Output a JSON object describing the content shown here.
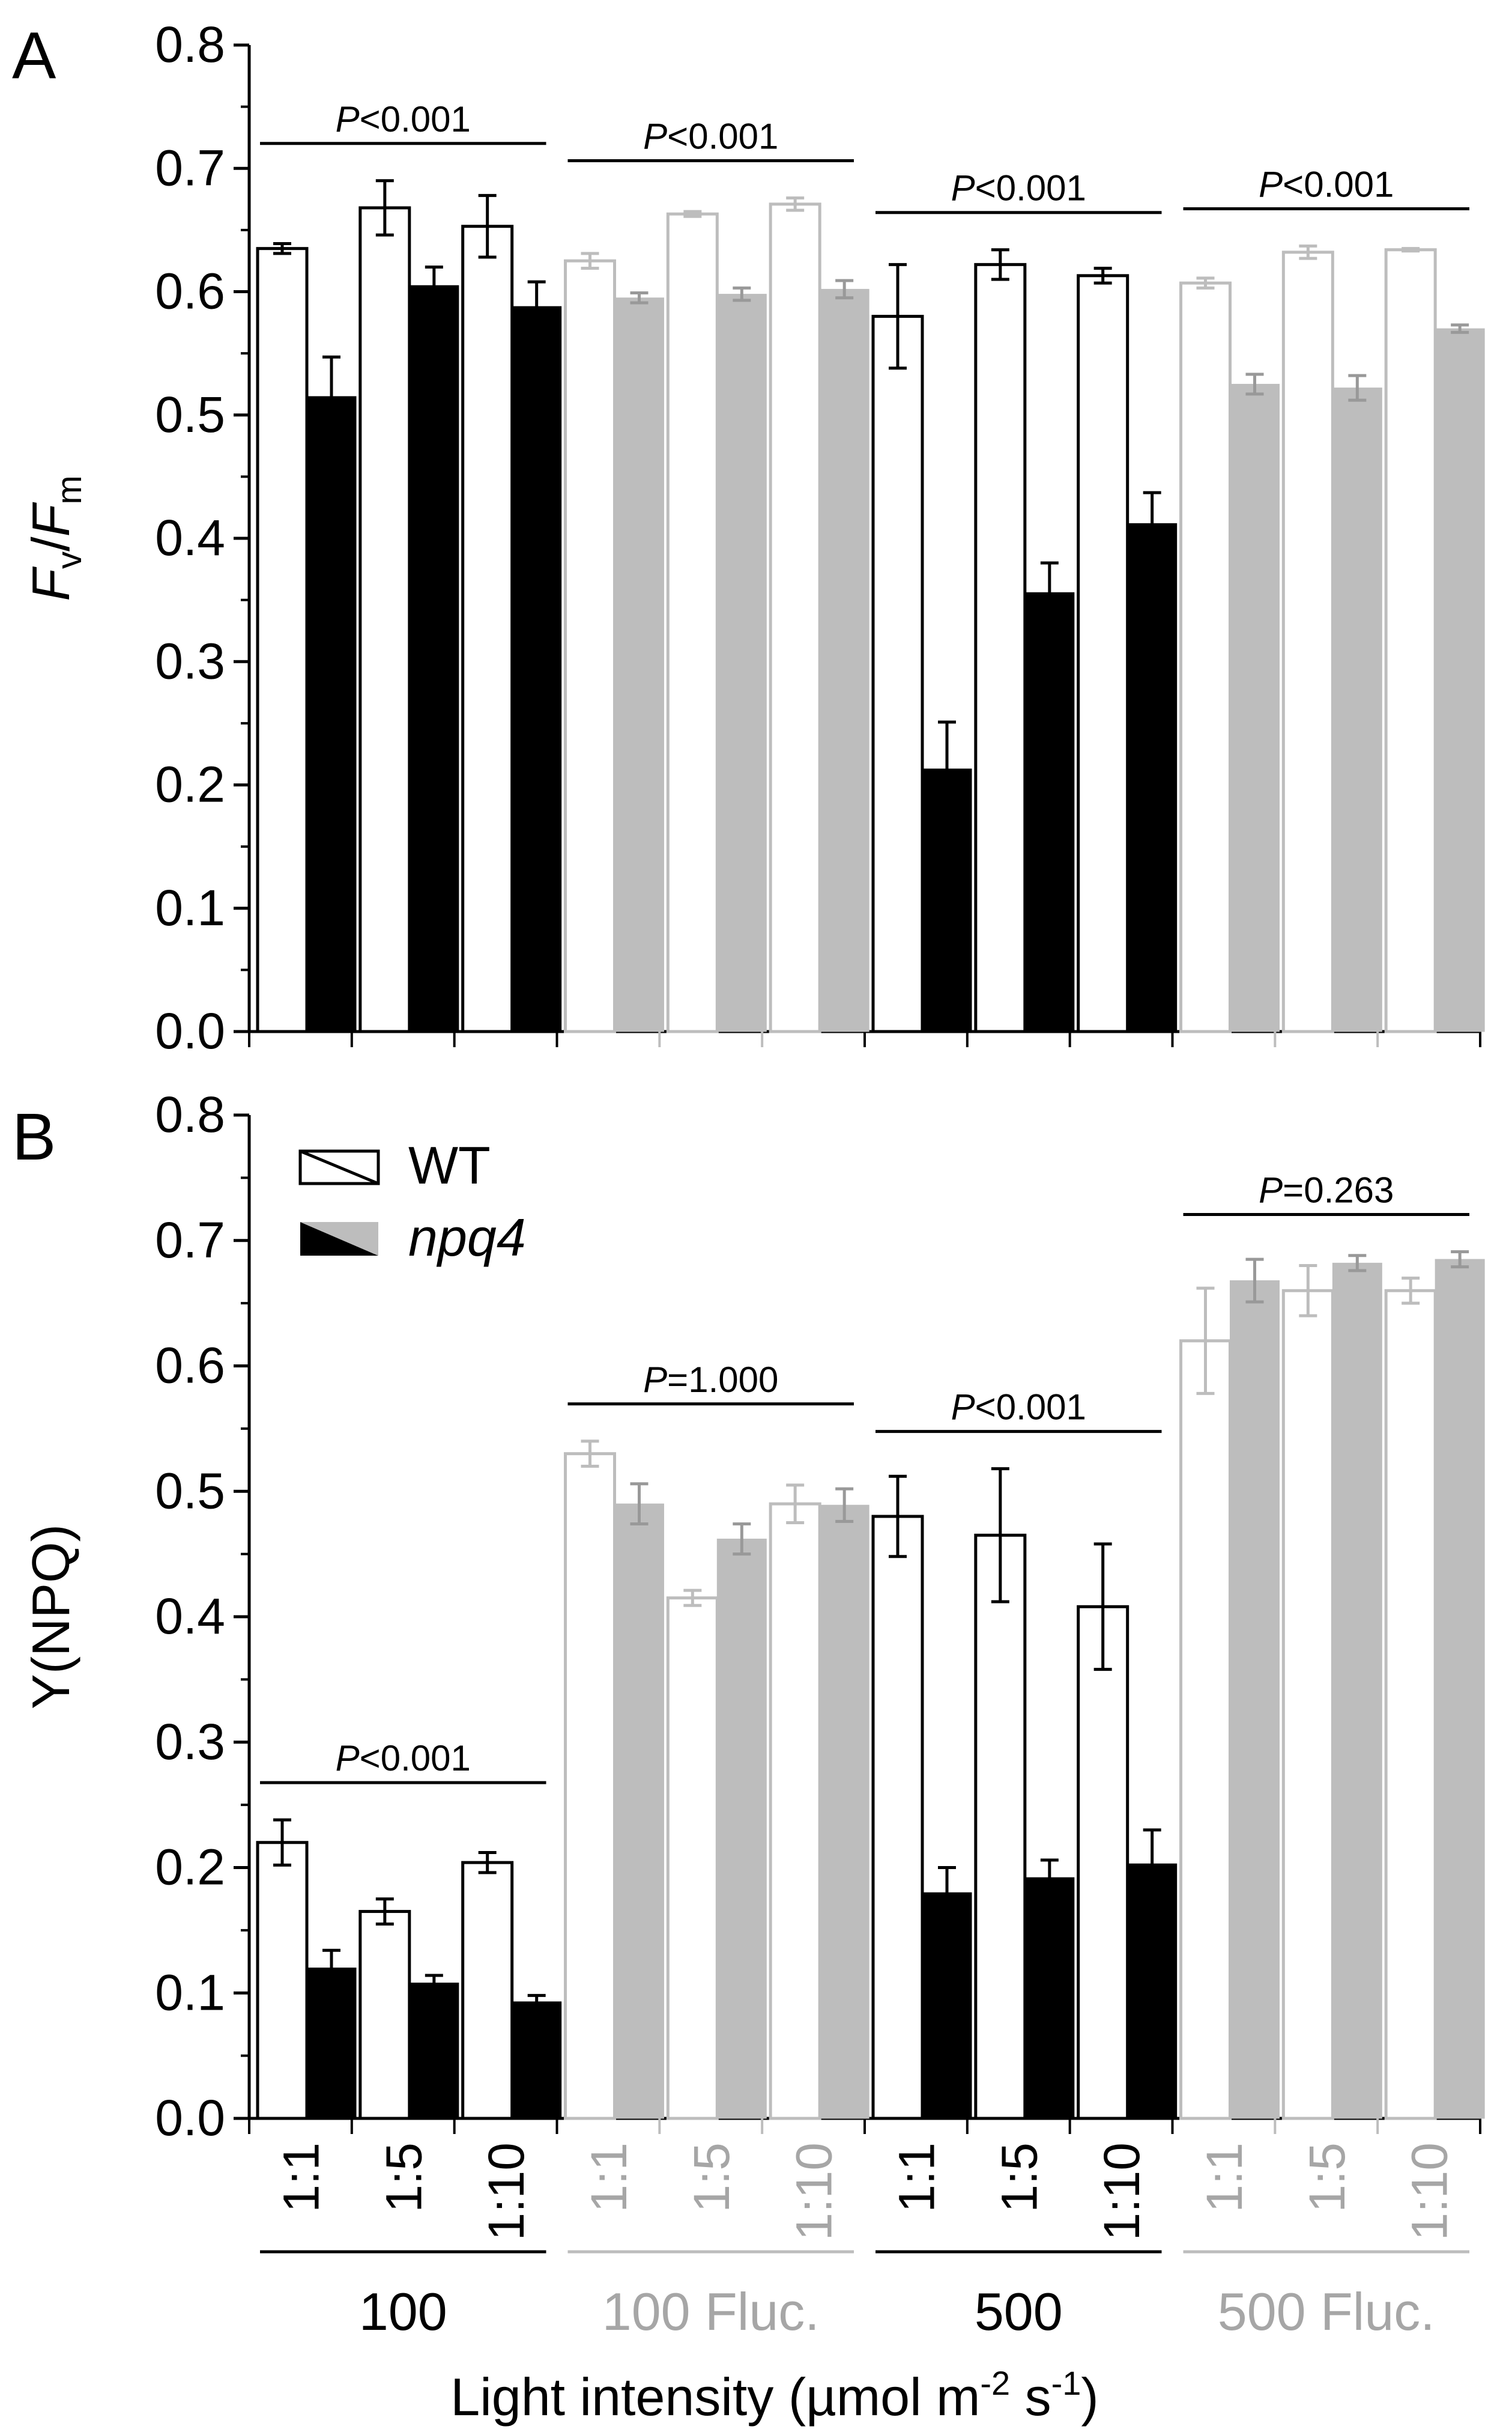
{
  "figure": {
    "x_axis_title": "Light intensity (µmol m",
    "x_axis_title_exp1": "-2",
    "x_axis_title_mid": " s",
    "x_axis_title_exp2": "-1",
    "x_axis_title_end": ")"
  },
  "colors": {
    "dark": "#000000",
    "light": "#bdbdbd",
    "light_text": "#a6a6a6",
    "wt_fill": "#ffffff"
  },
  "legend": {
    "wt": "WT",
    "mutant": "npq4"
  },
  "chart_data": [
    {
      "type": "bar",
      "panel_label": "A",
      "ylabel": "Fv/Fm",
      "ylabel_parts": [
        "F",
        "v",
        "/",
        "F",
        "m"
      ],
      "ylim": [
        0,
        0.8
      ],
      "yticks": [
        "0.0",
        "0.1",
        "0.2",
        "0.3",
        "0.4",
        "0.5",
        "0.6",
        "0.7",
        "0.8"
      ],
      "groups": [
        {
          "name": "100",
          "style": "dark",
          "pvalue": "P<0.001",
          "categories": [
            "1:1",
            "1:5",
            "1:10"
          ],
          "series": [
            {
              "name": "WT",
              "values": [
                0.635,
                0.668,
                0.653
              ],
              "errors": [
                0.004,
                0.022,
                0.025
              ]
            },
            {
              "name": "npq4",
              "values": [
                0.515,
                0.605,
                0.588
              ],
              "errors": [
                0.032,
                0.015,
                0.02
              ]
            }
          ]
        },
        {
          "name": "100 Fluc.",
          "style": "light",
          "pvalue": "P<0.001",
          "categories": [
            "1:1",
            "1:5",
            "1:10"
          ],
          "series": [
            {
              "name": "WT",
              "values": [
                0.625,
                0.663,
                0.671
              ],
              "errors": [
                0.006,
                0.002,
                0.005
              ]
            },
            {
              "name": "npq4",
              "values": [
                0.595,
                0.598,
                0.602
              ],
              "errors": [
                0.004,
                0.005,
                0.007
              ]
            }
          ]
        },
        {
          "name": "500",
          "style": "dark",
          "pvalue": "P<0.001",
          "categories": [
            "1:1",
            "1:5",
            "1:10"
          ],
          "series": [
            {
              "name": "WT",
              "values": [
                0.58,
                0.622,
                0.613
              ],
              "errors": [
                0.042,
                0.012,
                0.006
              ]
            },
            {
              "name": "npq4",
              "values": [
                0.213,
                0.356,
                0.412
              ],
              "errors": [
                0.038,
                0.024,
                0.025
              ]
            }
          ]
        },
        {
          "name": "500 Fluc.",
          "style": "light",
          "pvalue": "P<0.001",
          "categories": [
            "1:1",
            "1:5",
            "1:10"
          ],
          "series": [
            {
              "name": "WT",
              "values": [
                0.607,
                0.632,
                0.634
              ],
              "errors": [
                0.004,
                0.005,
                0.001
              ]
            },
            {
              "name": "npq4",
              "values": [
                0.525,
                0.522,
                0.57
              ],
              "errors": [
                0.008,
                0.01,
                0.003
              ]
            }
          ]
        }
      ]
    },
    {
      "type": "bar",
      "panel_label": "B",
      "ylabel": "Y(NPQ)",
      "ylim": [
        0,
        0.8
      ],
      "yticks": [
        "0.0",
        "0.1",
        "0.2",
        "0.3",
        "0.4",
        "0.5",
        "0.6",
        "0.7",
        "0.8"
      ],
      "groups": [
        {
          "name": "100",
          "style": "dark",
          "pvalue": "P<0.001",
          "categories": [
            "1:1",
            "1:5",
            "1:10"
          ],
          "series": [
            {
              "name": "WT",
              "values": [
                0.22,
                0.165,
                0.204
              ],
              "errors": [
                0.018,
                0.01,
                0.008
              ]
            },
            {
              "name": "npq4",
              "values": [
                0.12,
                0.108,
                0.093
              ],
              "errors": [
                0.014,
                0.006,
                0.005
              ]
            }
          ]
        },
        {
          "name": "100 Fluc.",
          "style": "light",
          "pvalue": "P=1.000",
          "categories": [
            "1:1",
            "1:5",
            "1:10"
          ],
          "series": [
            {
              "name": "WT",
              "values": [
                0.53,
                0.415,
                0.49
              ],
              "errors": [
                0.01,
                0.006,
                0.015
              ]
            },
            {
              "name": "npq4",
              "values": [
                0.49,
                0.462,
                0.489
              ],
              "errors": [
                0.016,
                0.012,
                0.013
              ]
            }
          ]
        },
        {
          "name": "500",
          "style": "dark",
          "pvalue": "P<0.001",
          "categories": [
            "1:1",
            "1:5",
            "1:10"
          ],
          "series": [
            {
              "name": "WT",
              "values": [
                0.48,
                0.465,
                0.408
              ],
              "errors": [
                0.032,
                0.053,
                0.05
              ]
            },
            {
              "name": "npq4",
              "values": [
                0.18,
                0.192,
                0.203
              ],
              "errors": [
                0.02,
                0.014,
                0.027
              ]
            }
          ]
        },
        {
          "name": "500 Fluc.",
          "style": "light",
          "pvalue": "P=0.263",
          "categories": [
            "1:1",
            "1:5",
            "1:10"
          ],
          "series": [
            {
              "name": "WT",
              "values": [
                0.62,
                0.66,
                0.66
              ],
              "errors": [
                0.042,
                0.02,
                0.01
              ]
            },
            {
              "name": "npq4",
              "values": [
                0.668,
                0.682,
                0.685
              ],
              "errors": [
                0.017,
                0.006,
                0.006
              ]
            }
          ]
        }
      ]
    }
  ]
}
